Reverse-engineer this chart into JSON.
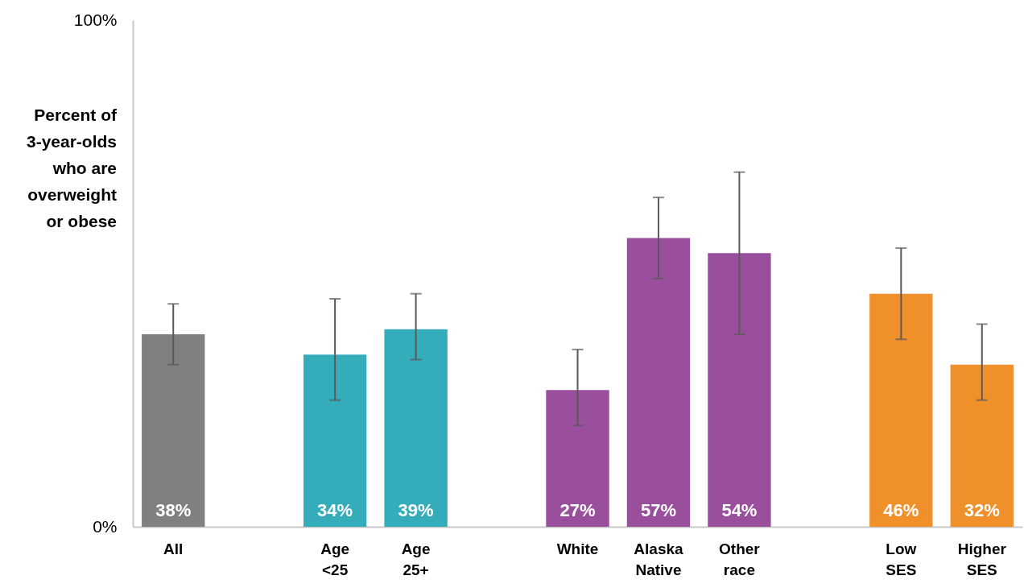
{
  "chart_data": {
    "type": "bar",
    "ylabel": "Percent of 3-year-olds who are overweight or obese",
    "categories": [
      "All",
      null,
      "Age <25",
      "Age 25+",
      null,
      "White",
      "Alaska Native",
      "Other race",
      null,
      "Low SES",
      "Higher SES"
    ],
    "values": [
      38,
      null,
      34,
      39,
      null,
      27,
      57,
      54,
      null,
      46,
      32
    ],
    "colors": [
      "#808080",
      null,
      "#35acb9",
      "#35acb9",
      null,
      "#9a4f9c",
      "#9a4f9c",
      "#9a4f9c",
      null,
      "#f0902a",
      "#f0902a"
    ],
    "errors": [
      [
        32,
        44
      ],
      null,
      [
        25,
        45
      ],
      [
        33,
        46
      ],
      null,
      [
        20,
        35
      ],
      [
        49,
        65
      ],
      [
        38,
        70
      ],
      null,
      [
        37,
        55
      ],
      [
        25,
        40
      ]
    ],
    "value_labels": [
      "38%",
      null,
      "34%",
      "39%",
      null,
      "27%",
      "57%",
      "54%",
      null,
      "46%",
      "32%"
    ],
    "ylim": [
      0,
      100
    ],
    "yticks": [
      {
        "value": 0,
        "label": "0%"
      },
      {
        "value": 100,
        "label": "100%"
      }
    ],
    "grid": false
  }
}
